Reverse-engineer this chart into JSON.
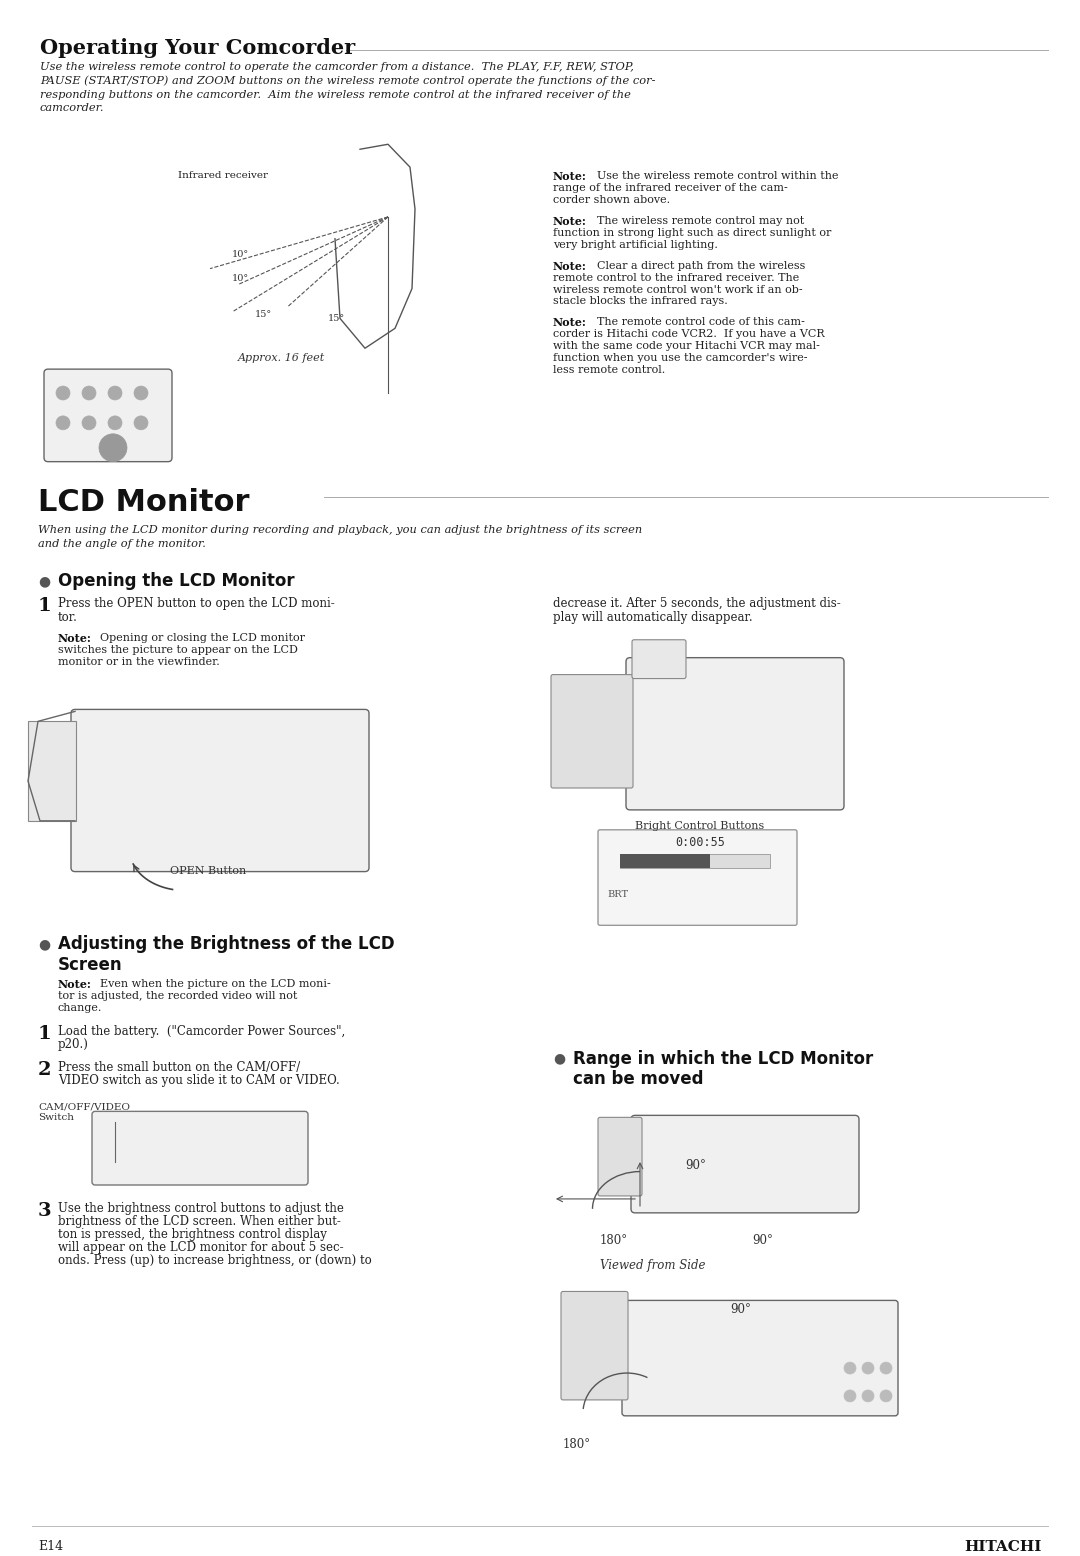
{
  "page_bg": "#ffffff",
  "page_width": 10.8,
  "page_height": 15.56,
  "dpi": 100,
  "section1_title": "Operating Your Comcorder",
  "section1_body_lines": [
    "Use the wireless remote control to operate the camcorder from a distance.  The PLAY, F.F, REW, STOP,",
    "PAUSE (START/STOP) and ZOOM buttons on the wireless remote control operate the functions of the cor-",
    "responding buttons on the camcorder.  Aim the wireless remote control at the infrared receiver of the",
    "camcorder."
  ],
  "note1a": "Note:  Use the wireless remote control within the\nrange of the infrared receiver of the cam-\ncorder shown above.",
  "note1b": "Note:  The wireless remote control may not\nfunction in strong light such as direct sunlight or\nvery bright artificial lighting.",
  "note1c": "Note:  Clear a direct path from the wireless\nremote control to the infrared receiver. The\nwireless remote control won't work if an ob-\nstacle blocks the infrared rays.",
  "note1d": "Note:  The remote control code of this cam-\ncorder is Hitachi code VCR2.  If you have a VCR\nwith the same code your Hitachi VCR may mal-\nfunction when you use the camcorder's wire-\nless remote control.",
  "section2_title": "LCD Monitor",
  "section2_intro": "When using the LCD monitor during recording and playback, you can adjust the brightness of its screen\nand the angle of the monitor.",
  "subsec_open_title": "Opening the LCD Monitor",
  "step1_text": "Press the OPEN button to open the LCD moni-\ntor.",
  "note_open": "Note:  Opening or closing the LCD monitor\nswitches the picture to appear on the LCD\nmonitor or in the viewfinder.",
  "step_decrease": "decrease it. After 5 seconds, the adjustment dis-\nplay will automatically disappear.",
  "bright_label": "Bright Control Buttons",
  "subsec_bright_title": "Adjusting the Brightness of the LCD\nScreen",
  "note_bright": "Note:  Even when the picture on the LCD moni-\ntor is adjusted, the recorded video will not\nchange.",
  "step2a_text": "Load the battery.  (\"Camcorder Power Sources\",\np20.)",
  "step2b_text": "Press the small button on the CAM/OFF/\nVIDEO switch as you slide it to CAM or VIDEO.",
  "cam_label": "CAM/OFF/VIDEO\nSwitch",
  "step3_text": "Use the brightness control buttons to adjust the\nbrightness of the LCD screen. When either but-\nton is pressed, the brightness control display\nwill appear on the LCD monitor for about 5 sec-\nonds. Press (up) to increase brightness, or (down) to",
  "subsec_range_title": "Range in which the LCD Monitor\ncan be moved",
  "footer_left": "E14",
  "footer_right": "HITACHI"
}
